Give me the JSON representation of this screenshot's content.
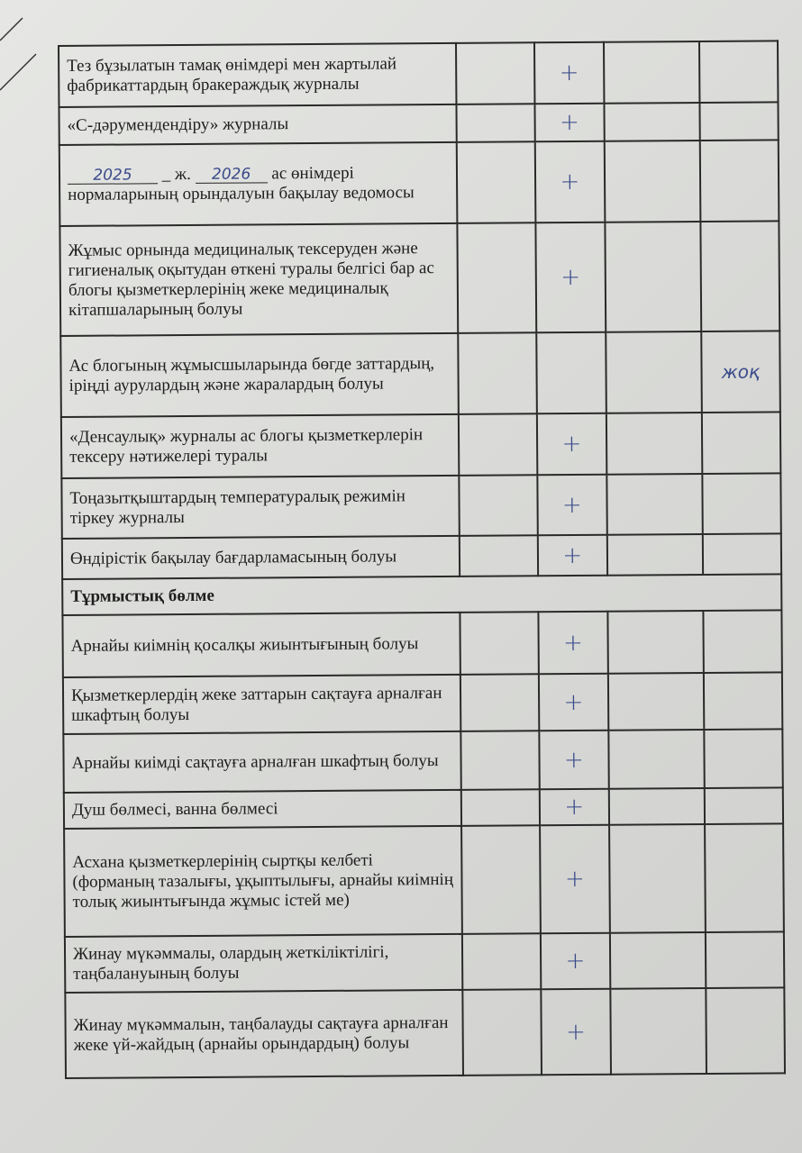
{
  "rows": [
    {
      "text": "Тез бұзылатын тамақ өнімдері мен жартылай фабрикаттардың бракераждық журналы",
      "mark": "+",
      "note": ""
    },
    {
      "text": "«С-дәрумендендіру» журналы",
      "mark": "+",
      "note": ""
    },
    {
      "text": "",
      "mark": "+",
      "note": ""
    },
    {
      "text": "Жұмыс орнында медициналық тексеруден және гигиеналық оқытудан өткені туралы белгісі бар ас блогы қызметкерлерінің жеке медициналық кітапшаларының болуы",
      "mark": "+",
      "note": ""
    },
    {
      "text": "Ас блогының жұмысшыларында бөгде заттардың, іріңді аурулардың және жаралардың болуы",
      "mark": "",
      "note": "жоқ"
    },
    {
      "text": "«Денсаулық» журналы ас блогы қызметкерлерін тексеру нәтижелері туралы",
      "mark": "+",
      "note": ""
    },
    {
      "text": "Тоңазытқыштардың температуралық режимін тіркеу журналы",
      "mark": "+",
      "note": ""
    },
    {
      "text": "Өндірістік бақылау бағдарламасының болуы",
      "mark": "+",
      "note": ""
    }
  ],
  "vedomost": {
    "year1": "2025",
    "sep": "ж.",
    "year2": "2026",
    "text1": "ас өнімдері",
    "text2": "нормаларының орындалуын бақылау ведомосы"
  },
  "section": "Тұрмыстық бөлме",
  "rows2": [
    {
      "text": "Арнайы киімнің қосалқы жиынтығының болуы",
      "mark": "+"
    },
    {
      "text": "Қызметкерлердің жеке заттарын сақтауға арналған шкафтың болуы",
      "mark": "+"
    },
    {
      "text": "Арнайы киімді сақтауға арналған шкафтың болуы",
      "mark": "+"
    },
    {
      "text": "Душ бөлмесі, ванна бөлмесі",
      "mark": "+"
    },
    {
      "text": "Асхана қызметкерлерінің сыртқы келбеті (форманың тазалығы, ұқыптылығы, арнайы киімнің толық жиынтығында жұмыс істей ме)",
      "mark": "+"
    },
    {
      "text": "Жинау мүкәммалы, олардың жеткіліктілігі, таңбалануының болуы",
      "mark": "+"
    },
    {
      "text": "Жинау мүкәммалын, таңбалауды сақтауға арналған жеке үй-жайдың (арнайы орындардың) болуы",
      "mark": "+"
    }
  ]
}
